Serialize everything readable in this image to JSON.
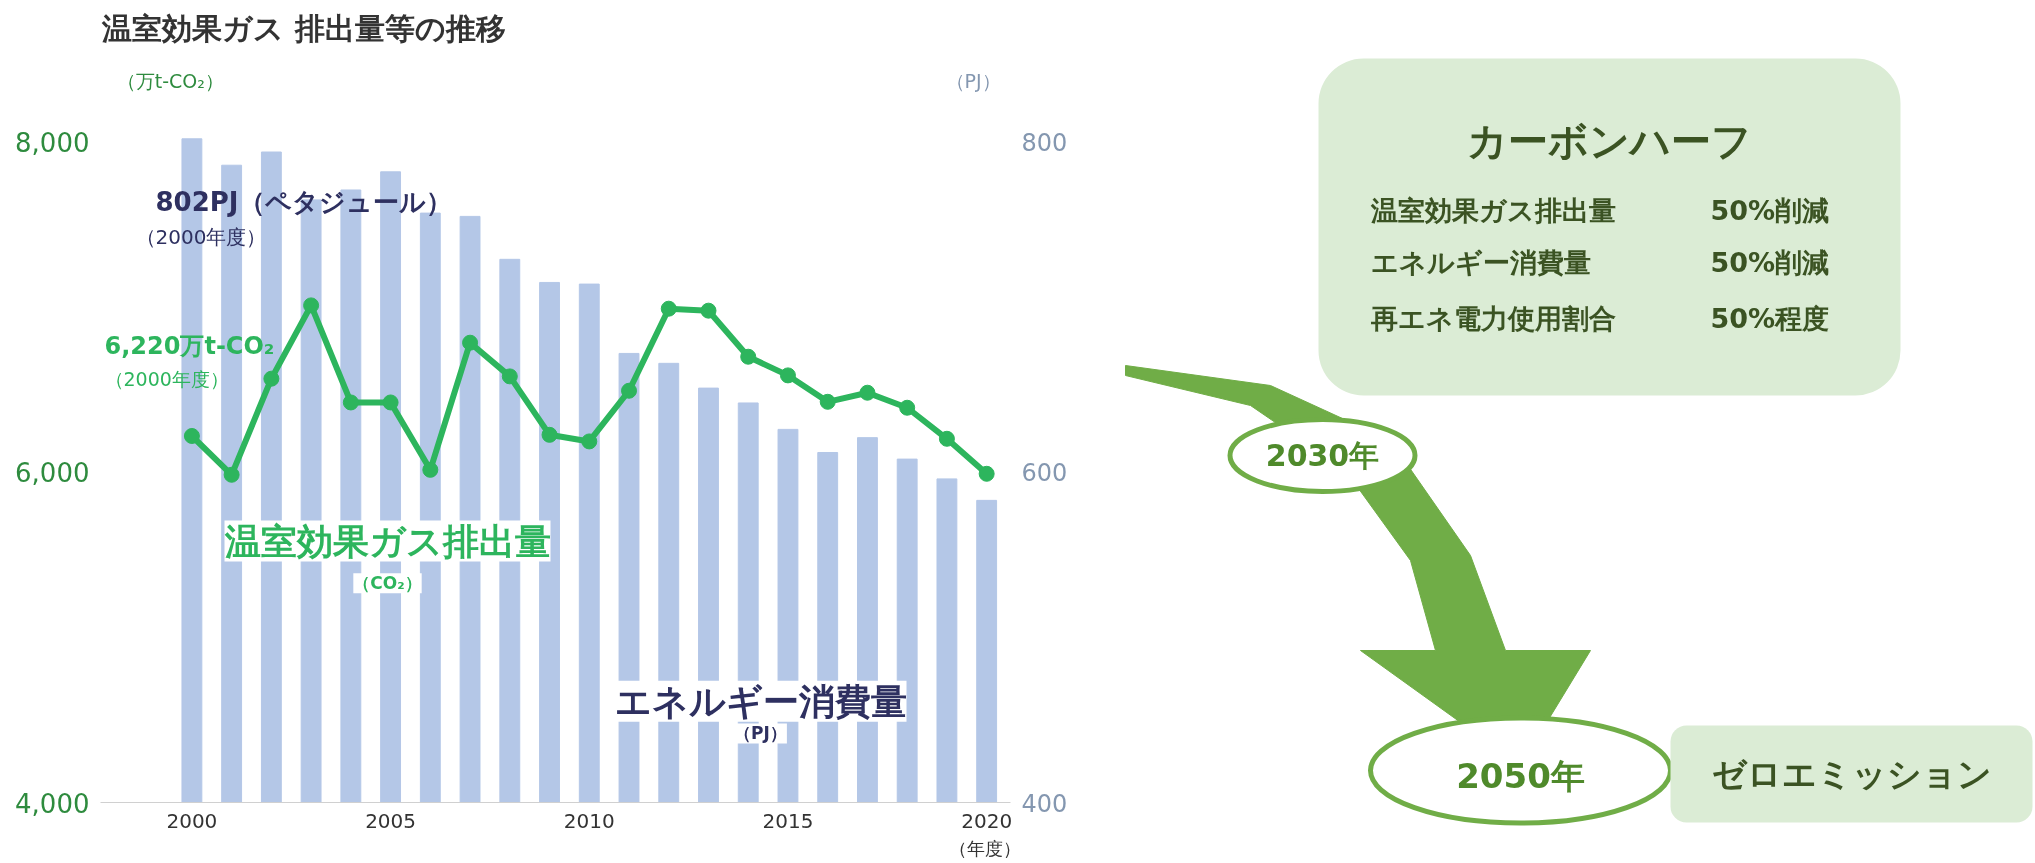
{
  "chart_data": {
    "type": "bar",
    "title": "温室効果ガス 排出量等の推移",
    "xlabel": "（年度）",
    "ylabel": "（万t-CO₂）",
    "y2label": "（PJ）",
    "x": [
      2000,
      2001,
      2002,
      2003,
      2004,
      2005,
      2006,
      2007,
      2008,
      2009,
      2010,
      2011,
      2012,
      2013,
      2014,
      2015,
      2016,
      2017,
      2018,
      2019,
      2020
    ],
    "series": [
      {
        "name": "エネルギー消費量",
        "axis": "y2",
        "color": "#b4c7e7",
        "values": [
          802,
          786,
          794,
          765,
          771,
          782,
          757,
          755,
          729,
          715,
          714,
          672,
          666,
          651,
          642,
          626,
          612,
          621,
          608,
          596,
          583
        ]
      },
      {
        "name": "温室効果ガス排出量",
        "type": "line",
        "color": "#2db55d",
        "values": [
          6220,
          5985,
          6567,
          7011,
          6423,
          6423,
          6015,
          6785,
          6581,
          6227,
          6187,
          6494,
          6991,
          6979,
          6700,
          6587,
          6427,
          6482,
          6391,
          6203,
          5991
        ]
      }
    ],
    "xlim": [
      1997.7,
      2020.6
    ],
    "ylim": [
      4000,
      8040
    ],
    "y2lim": [
      400,
      804
    ],
    "xticks": [
      2000,
      2005,
      2010,
      2015,
      2020
    ],
    "yticks": [
      {
        "value": 4000,
        "label": "4,000"
      },
      {
        "value": 6000,
        "label": "6,000"
      },
      {
        "value": 8000,
        "label": "8,000"
      }
    ],
    "y2ticks": [
      400,
      600,
      800
    ],
    "marker": "circle",
    "legend": false,
    "annotations": [
      "（CO₂）",
      "（PJ）",
      "802PJ（ペタジュール）",
      "（2000年度）",
      "6,220万t-CO₂",
      "（2000年度）",
      "カーボンハーフ",
      "温室効果ガス排出量",
      "50%削減",
      "エネルギー消費量",
      "50%削減",
      "再エネ電力使用割合",
      "50%程度",
      "2030年",
      "2050年",
      "ゼロエミッション"
    ]
  }
}
